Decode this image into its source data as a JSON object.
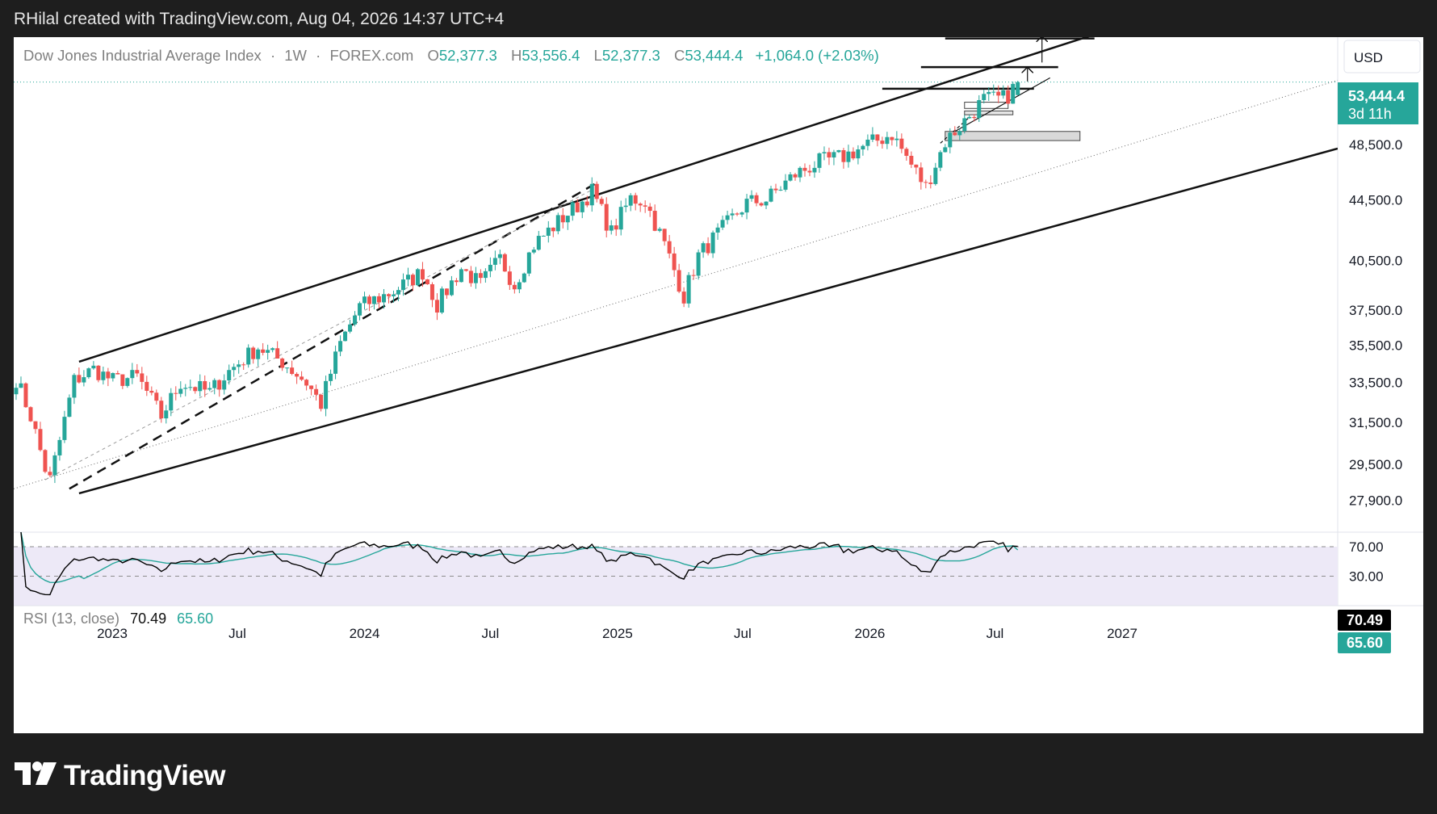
{
  "header": {
    "created_by": "RHilal created with TradingView.com, Aug 04, 2026 14:37 UTC+4"
  },
  "symbol": {
    "name": "Dow Jones Industrial Average Index",
    "interval": "1W",
    "source": "FOREX.com"
  },
  "ohlc": {
    "o_label": "O",
    "o": "52,377.3",
    "h_label": "H",
    "h": "53,556.4",
    "l_label": "L",
    "l": "52,377.3",
    "c_label": "C",
    "c": "53,444.4",
    "change": "+1,064.0 (+2.03%)"
  },
  "currency": "USD",
  "price_badge": {
    "value": "53,444.4",
    "countdown": "3d 11h"
  },
  "rsi": {
    "label": "RSI (13, close)",
    "value": "70.49",
    "ma": "65.60",
    "badge_value": "70.49",
    "badge_ma": "65.60",
    "level_70": "70.00",
    "level_30": "30.00"
  },
  "colors": {
    "up": "#26a69a",
    "down": "#ef5350",
    "rsi_line": "#000000",
    "rsi_ma": "#26a69a",
    "rsi_band": "#ede9f7",
    "badge": "#26a69a",
    "background": "#ffffff",
    "frame": "#1e1e1e"
  },
  "chart_data": {
    "type": "candlestick",
    "interval": "1W",
    "y_ticks": [
      27900,
      29500,
      31500,
      33500,
      35500,
      37500,
      40500,
      44500,
      48500
    ],
    "y_tick_labels": [
      "27,900.0",
      "29,500.0",
      "31,500.0",
      "33,500.0",
      "35,500.0",
      "37,500.0",
      "40,500.0",
      "44,500.0",
      "48,500.0"
    ],
    "x_ticks": [
      "2023-01-01",
      "2023-07-01",
      "2024-01-01",
      "2024-07-01",
      "2025-01-01",
      "2025-07-01",
      "2026-01-01",
      "2026-07-01",
      "2027-01-01"
    ],
    "x_tick_labels": [
      "2023",
      "Jul",
      "2024",
      "Jul",
      "2025",
      "Jul",
      "2026",
      "Jul",
      "2027"
    ],
    "close_anchors": [
      [
        "2022-08-15",
        33700
      ],
      [
        "2022-09-05",
        31800
      ],
      [
        "2022-09-26",
        29300
      ],
      [
        "2022-10-03",
        28800
      ],
      [
        "2022-10-17",
        30600
      ],
      [
        "2022-11-07",
        33600
      ],
      [
        "2022-12-05",
        34200
      ],
      [
        "2023-01-02",
        33600
      ],
      [
        "2023-02-06",
        33800
      ],
      [
        "2023-03-13",
        31800
      ],
      [
        "2023-04-10",
        33500
      ],
      [
        "2023-05-22",
        33000
      ],
      [
        "2023-06-19",
        34100
      ],
      [
        "2023-07-31",
        35400
      ],
      [
        "2023-09-04",
        34600
      ],
      [
        "2023-10-09",
        33500
      ],
      [
        "2023-10-30",
        32400
      ],
      [
        "2023-11-27",
        35600
      ],
      [
        "2023-12-25",
        37700
      ],
      [
        "2024-02-12",
        38600
      ],
      [
        "2024-03-25",
        39800
      ],
      [
        "2024-04-15",
        37800
      ],
      [
        "2024-05-20",
        40000
      ],
      [
        "2024-06-17",
        39000
      ],
      [
        "2024-07-15",
        40600
      ],
      [
        "2024-08-05",
        39000
      ],
      [
        "2024-09-02",
        41500
      ],
      [
        "2024-10-14",
        43300
      ],
      [
        "2024-11-11",
        44400
      ],
      [
        "2024-11-25",
        45100
      ],
      [
        "2024-12-23",
        42300
      ],
      [
        "2025-01-20",
        44600
      ],
      [
        "2025-02-10",
        44400
      ],
      [
        "2025-03-10",
        41500
      ],
      [
        "2025-04-07",
        38300
      ],
      [
        "2025-04-28",
        40800
      ],
      [
        "2025-05-26",
        42200
      ],
      [
        "2025-07-07",
        44300
      ],
      [
        "2025-08-04",
        44500
      ],
      [
        "2025-09-15",
        46300
      ],
      [
        "2025-10-20",
        47200
      ],
      [
        "2025-11-24",
        47600
      ],
      [
        "2025-12-29",
        48500
      ],
      [
        "2026-02-02",
        49300
      ],
      [
        "2026-03-02",
        47000
      ],
      [
        "2026-03-23",
        45400
      ],
      [
        "2026-04-20",
        48700
      ],
      [
        "2026-05-18",
        50300
      ],
      [
        "2026-06-15",
        52000
      ],
      [
        "2026-07-13",
        52100
      ],
      [
        "2026-07-20",
        52380
      ],
      [
        "2026-08-03",
        53444
      ]
    ],
    "rsi_last": 70.49,
    "rsi_ma_last": 65.6,
    "rsi_levels": [
      70,
      30
    ],
    "last": {
      "open": 52377.3,
      "high": 53556.4,
      "low": 52377.3,
      "close": 53444.4
    }
  }
}
